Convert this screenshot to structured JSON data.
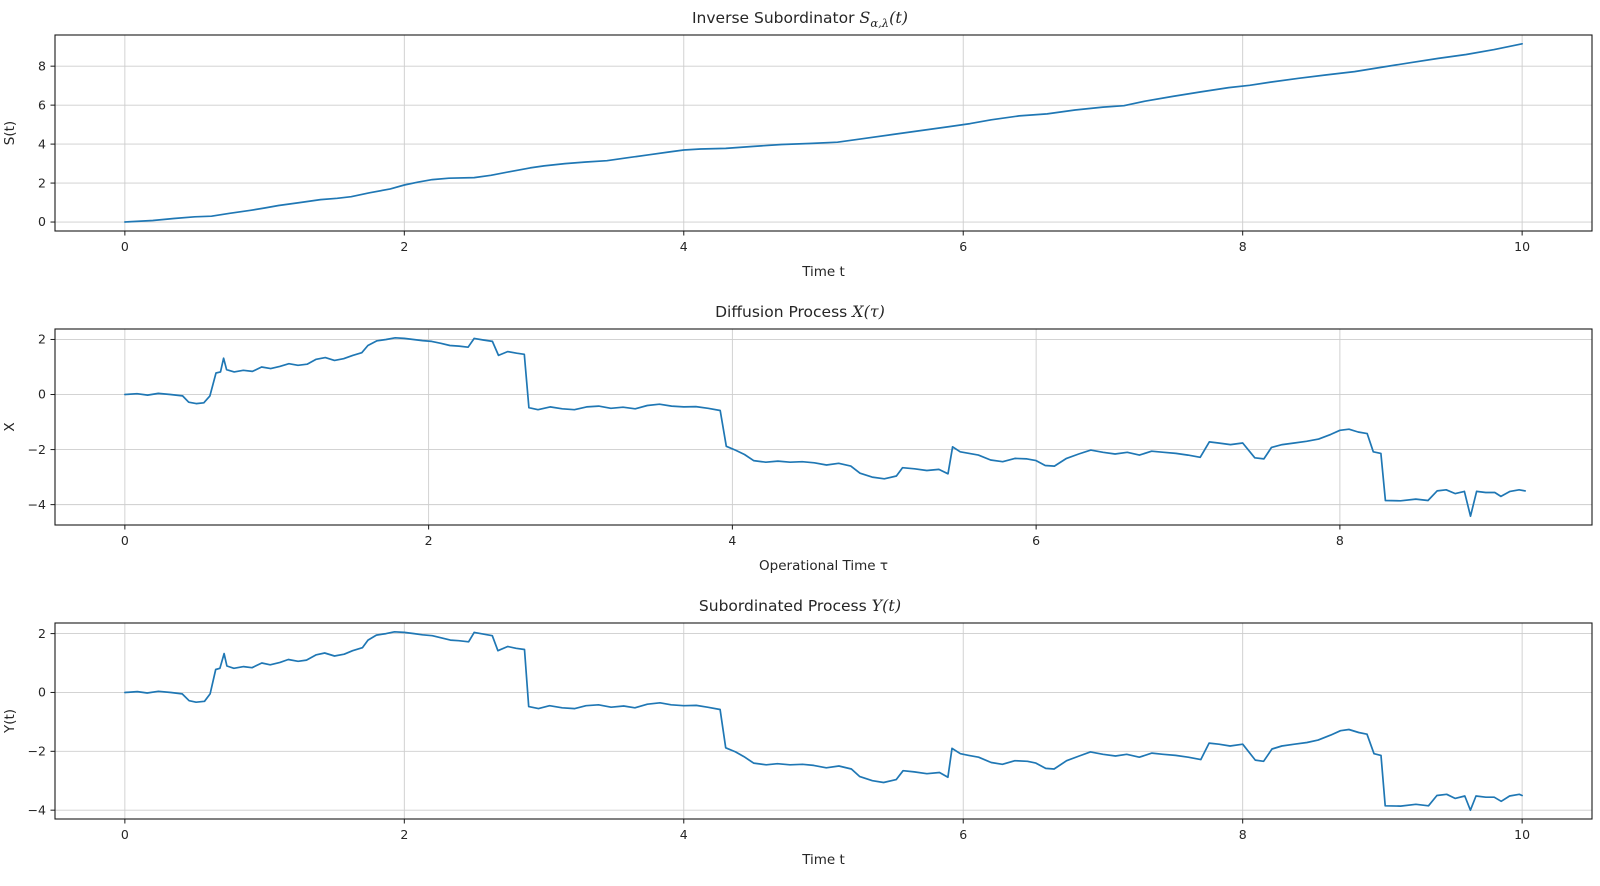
{
  "colors": {
    "line": "#1f77b4",
    "grid": "#cdcdcd",
    "spine": "#1a1a1a",
    "text": "#262626",
    "background": "#ffffff"
  },
  "chart_data": [
    {
      "type": "line",
      "title": {
        "prefix": "Inverse Subordinator ",
        "var": "S",
        "sub": "α,λ",
        "suffix": "(t)"
      },
      "xlabel": "Time t",
      "ylabel": "S(t)",
      "xlim": [
        -0.5,
        10.5
      ],
      "ylim": [
        -0.46,
        9.6
      ],
      "xticks": [
        0,
        2,
        4,
        6,
        8,
        10
      ],
      "yticks": [
        0,
        2,
        4,
        6,
        8
      ],
      "grid": true,
      "legend": null,
      "points": [
        [
          0,
          0
        ],
        [
          0.2,
          0.08
        ],
        [
          0.35,
          0.18
        ],
        [
          0.5,
          0.27
        ],
        [
          0.62,
          0.3
        ],
        [
          0.75,
          0.45
        ],
        [
          0.9,
          0.6
        ],
        [
          1.0,
          0.72
        ],
        [
          1.1,
          0.85
        ],
        [
          1.25,
          1.0
        ],
        [
          1.4,
          1.15
        ],
        [
          1.52,
          1.22
        ],
        [
          1.62,
          1.3
        ],
        [
          1.75,
          1.5
        ],
        [
          1.9,
          1.7
        ],
        [
          2.0,
          1.9
        ],
        [
          2.1,
          2.05
        ],
        [
          2.2,
          2.18
        ],
        [
          2.32,
          2.25
        ],
        [
          2.5,
          2.28
        ],
        [
          2.62,
          2.4
        ],
        [
          2.75,
          2.58
        ],
        [
          2.9,
          2.78
        ],
        [
          3.0,
          2.88
        ],
        [
          3.15,
          3.0
        ],
        [
          3.3,
          3.08
        ],
        [
          3.45,
          3.15
        ],
        [
          3.6,
          3.3
        ],
        [
          3.75,
          3.45
        ],
        [
          3.9,
          3.6
        ],
        [
          4.0,
          3.7
        ],
        [
          4.12,
          3.75
        ],
        [
          4.3,
          3.78
        ],
        [
          4.5,
          3.88
        ],
        [
          4.7,
          3.98
        ],
        [
          4.9,
          4.03
        ],
        [
          5.1,
          4.1
        ],
        [
          5.3,
          4.3
        ],
        [
          5.5,
          4.5
        ],
        [
          5.7,
          4.7
        ],
        [
          5.9,
          4.9
        ],
        [
          6.05,
          5.05
        ],
        [
          6.2,
          5.25
        ],
        [
          6.4,
          5.45
        ],
        [
          6.6,
          5.55
        ],
        [
          6.8,
          5.75
        ],
        [
          7.0,
          5.9
        ],
        [
          7.15,
          5.97
        ],
        [
          7.3,
          6.2
        ],
        [
          7.5,
          6.45
        ],
        [
          7.7,
          6.68
        ],
        [
          7.9,
          6.9
        ],
        [
          8.05,
          7.02
        ],
        [
          8.2,
          7.18
        ],
        [
          8.4,
          7.38
        ],
        [
          8.6,
          7.55
        ],
        [
          8.8,
          7.72
        ],
        [
          9.0,
          7.95
        ],
        [
          9.2,
          8.18
        ],
        [
          9.4,
          8.4
        ],
        [
          9.6,
          8.6
        ],
        [
          9.8,
          8.85
        ],
        [
          10,
          9.15
        ]
      ]
    },
    {
      "type": "line",
      "title": {
        "prefix": "Diffusion Process ",
        "var": "X",
        "sub": "",
        "suffix": "(τ)"
      },
      "xlabel": "Operational Time τ",
      "ylabel": "X",
      "xlim": [
        -0.46,
        9.66
      ],
      "ylim": [
        -4.74,
        2.38
      ],
      "xticks": [
        0,
        2,
        4,
        6,
        8
      ],
      "yticks": [
        -4,
        -2,
        0,
        2
      ],
      "grid": true,
      "legend": null,
      "points": [
        [
          0,
          0
        ],
        [
          0.08,
          0.03
        ],
        [
          0.15,
          -0.02
        ],
        [
          0.22,
          0.04
        ],
        [
          0.3,
          0.0
        ],
        [
          0.38,
          -0.05
        ],
        [
          0.42,
          -0.28
        ],
        [
          0.47,
          -0.33
        ],
        [
          0.52,
          -0.3
        ],
        [
          0.56,
          -0.05
        ],
        [
          0.6,
          0.78
        ],
        [
          0.63,
          0.82
        ],
        [
          0.65,
          1.32
        ],
        [
          0.67,
          0.9
        ],
        [
          0.72,
          0.82
        ],
        [
          0.78,
          0.88
        ],
        [
          0.84,
          0.84
        ],
        [
          0.9,
          1.0
        ],
        [
          0.96,
          0.94
        ],
        [
          1.02,
          1.02
        ],
        [
          1.08,
          1.12
        ],
        [
          1.14,
          1.06
        ],
        [
          1.2,
          1.1
        ],
        [
          1.26,
          1.28
        ],
        [
          1.32,
          1.34
        ],
        [
          1.38,
          1.24
        ],
        [
          1.44,
          1.3
        ],
        [
          1.5,
          1.42
        ],
        [
          1.56,
          1.52
        ],
        [
          1.6,
          1.78
        ],
        [
          1.66,
          1.95
        ],
        [
          1.72,
          2.0
        ],
        [
          1.78,
          2.06
        ],
        [
          1.84,
          2.04
        ],
        [
          1.9,
          2.0
        ],
        [
          1.96,
          1.96
        ],
        [
          2.02,
          1.93
        ],
        [
          2.08,
          1.86
        ],
        [
          2.14,
          1.78
        ],
        [
          2.2,
          1.76
        ],
        [
          2.26,
          1.72
        ],
        [
          2.3,
          2.04
        ],
        [
          2.36,
          1.98
        ],
        [
          2.42,
          1.93
        ],
        [
          2.46,
          1.42
        ],
        [
          2.52,
          1.56
        ],
        [
          2.58,
          1.5
        ],
        [
          2.63,
          1.46
        ],
        [
          2.66,
          -0.48
        ],
        [
          2.72,
          -0.55
        ],
        [
          2.8,
          -0.45
        ],
        [
          2.88,
          -0.52
        ],
        [
          2.96,
          -0.55
        ],
        [
          3.04,
          -0.45
        ],
        [
          3.12,
          -0.42
        ],
        [
          3.2,
          -0.5
        ],
        [
          3.28,
          -0.46
        ],
        [
          3.36,
          -0.52
        ],
        [
          3.44,
          -0.4
        ],
        [
          3.52,
          -0.35
        ],
        [
          3.6,
          -0.42
        ],
        [
          3.68,
          -0.45
        ],
        [
          3.76,
          -0.44
        ],
        [
          3.84,
          -0.5
        ],
        [
          3.92,
          -0.58
        ],
        [
          3.96,
          -1.88
        ],
        [
          4.02,
          -2.02
        ],
        [
          4.08,
          -2.18
        ],
        [
          4.14,
          -2.4
        ],
        [
          4.22,
          -2.46
        ],
        [
          4.3,
          -2.42
        ],
        [
          4.38,
          -2.46
        ],
        [
          4.46,
          -2.44
        ],
        [
          4.54,
          -2.48
        ],
        [
          4.62,
          -2.56
        ],
        [
          4.7,
          -2.5
        ],
        [
          4.78,
          -2.6
        ],
        [
          4.84,
          -2.86
        ],
        [
          4.92,
          -3.0
        ],
        [
          5.0,
          -3.06
        ],
        [
          5.08,
          -2.96
        ],
        [
          5.12,
          -2.66
        ],
        [
          5.2,
          -2.7
        ],
        [
          5.28,
          -2.76
        ],
        [
          5.36,
          -2.72
        ],
        [
          5.42,
          -2.88
        ],
        [
          5.45,
          -1.9
        ],
        [
          5.5,
          -2.08
        ],
        [
          5.56,
          -2.14
        ],
        [
          5.62,
          -2.2
        ],
        [
          5.7,
          -2.38
        ],
        [
          5.78,
          -2.44
        ],
        [
          5.86,
          -2.32
        ],
        [
          5.94,
          -2.34
        ],
        [
          6.0,
          -2.4
        ],
        [
          6.06,
          -2.58
        ],
        [
          6.12,
          -2.6
        ],
        [
          6.2,
          -2.32
        ],
        [
          6.28,
          -2.16
        ],
        [
          6.36,
          -2.02
        ],
        [
          6.44,
          -2.1
        ],
        [
          6.52,
          -2.16
        ],
        [
          6.6,
          -2.1
        ],
        [
          6.68,
          -2.2
        ],
        [
          6.76,
          -2.06
        ],
        [
          6.84,
          -2.1
        ],
        [
          6.92,
          -2.14
        ],
        [
          7.0,
          -2.2
        ],
        [
          7.08,
          -2.28
        ],
        [
          7.14,
          -1.72
        ],
        [
          7.2,
          -1.76
        ],
        [
          7.28,
          -1.82
        ],
        [
          7.36,
          -1.76
        ],
        [
          7.44,
          -2.3
        ],
        [
          7.5,
          -2.34
        ],
        [
          7.55,
          -1.92
        ],
        [
          7.62,
          -1.82
        ],
        [
          7.7,
          -1.76
        ],
        [
          7.78,
          -1.7
        ],
        [
          7.86,
          -1.62
        ],
        [
          7.94,
          -1.45
        ],
        [
          8.0,
          -1.3
        ],
        [
          8.06,
          -1.26
        ],
        [
          8.12,
          -1.36
        ],
        [
          8.18,
          -1.42
        ],
        [
          8.22,
          -2.08
        ],
        [
          8.27,
          -2.14
        ],
        [
          8.3,
          -3.85
        ],
        [
          8.4,
          -3.86
        ],
        [
          8.5,
          -3.8
        ],
        [
          8.58,
          -3.85
        ],
        [
          8.64,
          -3.5
        ],
        [
          8.7,
          -3.46
        ],
        [
          8.76,
          -3.6
        ],
        [
          8.82,
          -3.52
        ],
        [
          8.86,
          -4.42
        ],
        [
          8.9,
          -3.52
        ],
        [
          8.96,
          -3.56
        ],
        [
          9.02,
          -3.56
        ],
        [
          9.06,
          -3.7
        ],
        [
          9.12,
          -3.52
        ],
        [
          9.18,
          -3.46
        ],
        [
          9.22,
          -3.5
        ]
      ]
    },
    {
      "type": "line",
      "title": {
        "prefix": "Subordinated Process ",
        "var": "Y",
        "sub": "",
        "suffix": "(t)"
      },
      "xlabel": "Time t",
      "ylabel": "Y(t)",
      "xlim": [
        -0.5,
        10.5
      ],
      "ylim": [
        -4.3,
        2.36
      ],
      "xticks": [
        0,
        2,
        4,
        6,
        8,
        10
      ],
      "yticks": [
        -4,
        -2,
        0,
        2
      ],
      "grid": true,
      "legend": null,
      "points": [
        [
          0,
          0
        ],
        [
          0.09,
          0.03
        ],
        [
          0.16,
          -0.02
        ],
        [
          0.24,
          0.04
        ],
        [
          0.33,
          0.0
        ],
        [
          0.41,
          -0.05
        ],
        [
          0.46,
          -0.28
        ],
        [
          0.51,
          -0.33
        ],
        [
          0.57,
          -0.3
        ],
        [
          0.61,
          -0.05
        ],
        [
          0.65,
          0.78
        ],
        [
          0.68,
          0.82
        ],
        [
          0.71,
          1.32
        ],
        [
          0.73,
          0.9
        ],
        [
          0.78,
          0.82
        ],
        [
          0.85,
          0.88
        ],
        [
          0.91,
          0.84
        ],
        [
          0.98,
          1.0
        ],
        [
          1.04,
          0.94
        ],
        [
          1.11,
          1.02
        ],
        [
          1.17,
          1.12
        ],
        [
          1.24,
          1.06
        ],
        [
          1.3,
          1.1
        ],
        [
          1.37,
          1.28
        ],
        [
          1.43,
          1.34
        ],
        [
          1.5,
          1.24
        ],
        [
          1.57,
          1.3
        ],
        [
          1.63,
          1.42
        ],
        [
          1.7,
          1.52
        ],
        [
          1.74,
          1.78
        ],
        [
          1.8,
          1.95
        ],
        [
          1.87,
          2.0
        ],
        [
          1.93,
          2.06
        ],
        [
          2.0,
          2.04
        ],
        [
          2.07,
          2.0
        ],
        [
          2.13,
          1.96
        ],
        [
          2.2,
          1.93
        ],
        [
          2.26,
          1.86
        ],
        [
          2.33,
          1.78
        ],
        [
          2.39,
          1.76
        ],
        [
          2.46,
          1.72
        ],
        [
          2.5,
          2.04
        ],
        [
          2.57,
          1.98
        ],
        [
          2.63,
          1.93
        ],
        [
          2.67,
          1.42
        ],
        [
          2.74,
          1.56
        ],
        [
          2.8,
          1.5
        ],
        [
          2.86,
          1.46
        ],
        [
          2.89,
          -0.48
        ],
        [
          2.96,
          -0.55
        ],
        [
          3.04,
          -0.45
        ],
        [
          3.13,
          -0.52
        ],
        [
          3.22,
          -0.55
        ],
        [
          3.3,
          -0.45
        ],
        [
          3.39,
          -0.42
        ],
        [
          3.48,
          -0.5
        ],
        [
          3.57,
          -0.46
        ],
        [
          3.65,
          -0.52
        ],
        [
          3.74,
          -0.4
        ],
        [
          3.83,
          -0.35
        ],
        [
          3.91,
          -0.42
        ],
        [
          4.0,
          -0.45
        ],
        [
          4.09,
          -0.44
        ],
        [
          4.17,
          -0.5
        ],
        [
          4.26,
          -0.58
        ],
        [
          4.3,
          -1.88
        ],
        [
          4.37,
          -2.02
        ],
        [
          4.43,
          -2.18
        ],
        [
          4.5,
          -2.4
        ],
        [
          4.59,
          -2.46
        ],
        [
          4.67,
          -2.42
        ],
        [
          4.76,
          -2.46
        ],
        [
          4.85,
          -2.44
        ],
        [
          4.93,
          -2.48
        ],
        [
          5.02,
          -2.56
        ],
        [
          5.11,
          -2.5
        ],
        [
          5.2,
          -2.6
        ],
        [
          5.26,
          -2.86
        ],
        [
          5.35,
          -3.0
        ],
        [
          5.43,
          -3.06
        ],
        [
          5.52,
          -2.96
        ],
        [
          5.57,
          -2.66
        ],
        [
          5.65,
          -2.7
        ],
        [
          5.74,
          -2.76
        ],
        [
          5.83,
          -2.72
        ],
        [
          5.89,
          -2.88
        ],
        [
          5.92,
          -1.9
        ],
        [
          5.98,
          -2.08
        ],
        [
          6.04,
          -2.14
        ],
        [
          6.11,
          -2.2
        ],
        [
          6.2,
          -2.38
        ],
        [
          6.28,
          -2.44
        ],
        [
          6.37,
          -2.32
        ],
        [
          6.46,
          -2.34
        ],
        [
          6.52,
          -2.4
        ],
        [
          6.59,
          -2.58
        ],
        [
          6.65,
          -2.6
        ],
        [
          6.74,
          -2.32
        ],
        [
          6.83,
          -2.16
        ],
        [
          6.91,
          -2.02
        ],
        [
          7.0,
          -2.1
        ],
        [
          7.09,
          -2.16
        ],
        [
          7.17,
          -2.1
        ],
        [
          7.26,
          -2.2
        ],
        [
          7.35,
          -2.06
        ],
        [
          7.43,
          -2.1
        ],
        [
          7.52,
          -2.14
        ],
        [
          7.61,
          -2.2
        ],
        [
          7.7,
          -2.28
        ],
        [
          7.76,
          -1.72
        ],
        [
          7.83,
          -1.76
        ],
        [
          7.91,
          -1.82
        ],
        [
          8.0,
          -1.76
        ],
        [
          8.09,
          -2.3
        ],
        [
          8.15,
          -2.34
        ],
        [
          8.21,
          -1.92
        ],
        [
          8.28,
          -1.82
        ],
        [
          8.37,
          -1.76
        ],
        [
          8.46,
          -1.7
        ],
        [
          8.54,
          -1.62
        ],
        [
          8.63,
          -1.45
        ],
        [
          8.7,
          -1.3
        ],
        [
          8.76,
          -1.26
        ],
        [
          8.83,
          -1.36
        ],
        [
          8.89,
          -1.42
        ],
        [
          8.94,
          -2.08
        ],
        [
          8.99,
          -2.14
        ],
        [
          9.02,
          -3.85
        ],
        [
          9.13,
          -3.86
        ],
        [
          9.24,
          -3.8
        ],
        [
          9.33,
          -3.85
        ],
        [
          9.39,
          -3.5
        ],
        [
          9.46,
          -3.46
        ],
        [
          9.52,
          -3.6
        ],
        [
          9.59,
          -3.52
        ],
        [
          9.63,
          -4.0
        ],
        [
          9.67,
          -3.52
        ],
        [
          9.74,
          -3.56
        ],
        [
          9.8,
          -3.56
        ],
        [
          9.85,
          -3.7
        ],
        [
          9.91,
          -3.52
        ],
        [
          9.98,
          -3.46
        ],
        [
          10.0,
          -3.5
        ]
      ]
    }
  ]
}
